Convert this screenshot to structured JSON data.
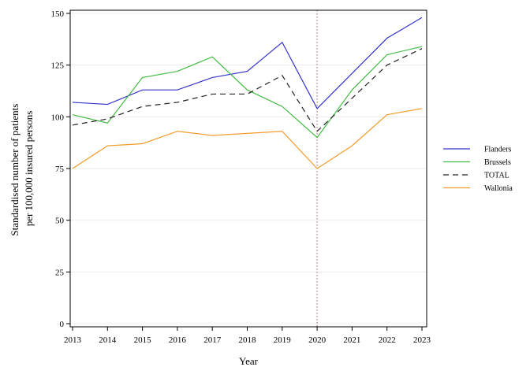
{
  "chart_data": {
    "type": "line",
    "xlabel": "Year",
    "ylabel_lines": [
      "Standardised number of patients",
      "per 100,000 insured persons"
    ],
    "categories": [
      "2013",
      "2014",
      "2015",
      "2016",
      "2017",
      "2018",
      "2019",
      "2020",
      "2021",
      "2022",
      "2023"
    ],
    "yticks": [
      "0",
      "25",
      "50",
      "75",
      "100",
      "125",
      "150"
    ],
    "ylim": [
      0,
      150
    ],
    "grid": true,
    "legend_position": "right",
    "reference_line": {
      "x": "2020",
      "style": "dotted",
      "color": "#b5707a"
    },
    "series": [
      {
        "name": "Flanders",
        "color": "#3333cc",
        "dash": "",
        "values": [
          107,
          106,
          113,
          113,
          119,
          122,
          136,
          104,
          121,
          138,
          148
        ]
      },
      {
        "name": "Brussels",
        "color": "#44bb44",
        "dash": "",
        "values": [
          101,
          97,
          119,
          122,
          129,
          113,
          105,
          90,
          113,
          130,
          134
        ]
      },
      {
        "name": "TOTAL",
        "color": "#222222",
        "dash": "7,5",
        "values": [
          96,
          99,
          105,
          107,
          111,
          111,
          120,
          93,
          109,
          125,
          133
        ]
      },
      {
        "name": "Wallonia",
        "color": "#f29b2b",
        "dash": "",
        "values": [
          75,
          86,
          87,
          93,
          91,
          92,
          93,
          75,
          86,
          101,
          104
        ]
      }
    ]
  }
}
